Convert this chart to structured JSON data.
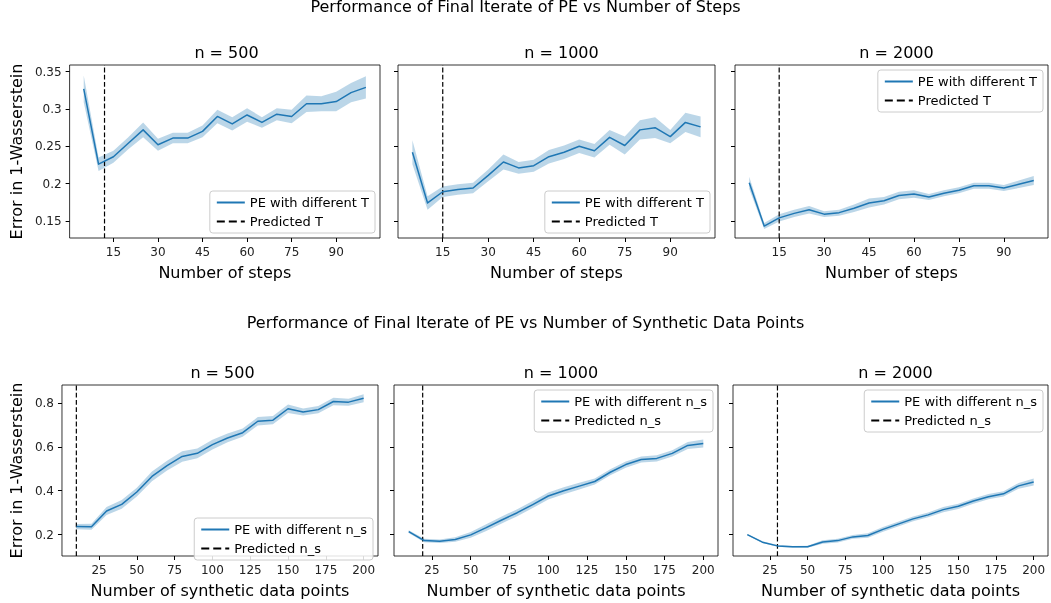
{
  "chart_data": [
    {
      "type": "line",
      "title": "n = 500",
      "xlabel": "Number of steps",
      "ylabel": "Error in 1-Wasserstein",
      "x": [
        5,
        10,
        15,
        20,
        25,
        30,
        35,
        40,
        45,
        50,
        55,
        60,
        65,
        70,
        75,
        80,
        85,
        90,
        95,
        100
      ],
      "xlim": [
        0.25,
        104.75
      ],
      "xticks": [
        15,
        30,
        45,
        60,
        75,
        90
      ],
      "ylim": [
        0.127,
        0.359
      ],
      "yticks": [
        0.15,
        0.2,
        0.25,
        0.3,
        0.35
      ],
      "grid": false,
      "legend": "bottom right",
      "series": [
        {
          "name": "PE with different T",
          "color": "#1f77b4",
          "values": [
            0.327,
            0.226,
            0.236,
            0.254,
            0.272,
            0.252,
            0.261,
            0.261,
            0.27,
            0.29,
            0.28,
            0.292,
            0.282,
            0.293,
            0.29,
            0.307,
            0.307,
            0.31,
            0.322,
            0.329
          ],
          "lower": [
            0.309,
            0.217,
            0.228,
            0.246,
            0.262,
            0.244,
            0.254,
            0.254,
            0.262,
            0.281,
            0.271,
            0.283,
            0.275,
            0.285,
            0.281,
            0.296,
            0.297,
            0.297,
            0.309,
            0.314
          ],
          "upper": [
            0.345,
            0.235,
            0.244,
            0.262,
            0.282,
            0.26,
            0.268,
            0.268,
            0.278,
            0.299,
            0.289,
            0.301,
            0.289,
            0.301,
            0.299,
            0.318,
            0.317,
            0.323,
            0.335,
            0.344
          ]
        }
      ],
      "ref_lines": [
        {
          "axis": "x",
          "value": 12,
          "label": "Predicted T",
          "color": "#000000",
          "line_style": "dashed"
        }
      ]
    },
    {
      "type": "line",
      "title": "n = 1000",
      "xlabel": "Number of steps",
      "x": [
        5,
        10,
        15,
        20,
        25,
        30,
        35,
        40,
        45,
        50,
        55,
        60,
        65,
        70,
        75,
        80,
        85,
        90,
        95,
        100
      ],
      "xlim": [
        0.25,
        104.75
      ],
      "xticks": [
        15,
        30,
        45,
        60,
        75,
        90
      ],
      "ylim": [
        0.127,
        0.359
      ],
      "yticks": [
        0.15,
        0.2,
        0.25,
        0.3,
        0.35
      ],
      "tick_labels": "x",
      "grid": false,
      "legend": "bottom right",
      "series": [
        {
          "name": "PE with different T",
          "color": "#1f77b4",
          "values": [
            0.242,
            0.174,
            0.189,
            0.192,
            0.194,
            0.211,
            0.229,
            0.221,
            0.224,
            0.236,
            0.242,
            0.25,
            0.244,
            0.262,
            0.251,
            0.272,
            0.275,
            0.263,
            0.282,
            0.276
          ],
          "lower": [
            0.226,
            0.165,
            0.182,
            0.185,
            0.187,
            0.203,
            0.219,
            0.213,
            0.216,
            0.227,
            0.233,
            0.241,
            0.235,
            0.252,
            0.239,
            0.259,
            0.261,
            0.254,
            0.269,
            0.262
          ],
          "upper": [
            0.258,
            0.183,
            0.196,
            0.199,
            0.201,
            0.219,
            0.239,
            0.229,
            0.232,
            0.245,
            0.251,
            0.259,
            0.253,
            0.272,
            0.263,
            0.285,
            0.289,
            0.272,
            0.295,
            0.29
          ]
        }
      ],
      "ref_lines": [
        {
          "axis": "x",
          "value": 15,
          "label": "Predicted T",
          "color": "#000000",
          "line_style": "dashed"
        }
      ],
      "annotations": [
        "Performance of Final Iterate of PE vs Number of Steps"
      ]
    },
    {
      "type": "line",
      "title": "n = 2000",
      "xlabel": "Number of steps",
      "x": [
        5,
        10,
        15,
        20,
        25,
        30,
        35,
        40,
        45,
        50,
        55,
        60,
        65,
        70,
        75,
        80,
        85,
        90,
        95,
        100
      ],
      "xlim": [
        0.25,
        104.75
      ],
      "xticks": [
        15,
        30,
        45,
        60,
        75,
        90
      ],
      "ylim": [
        0.127,
        0.359
      ],
      "yticks": [
        0.15,
        0.2,
        0.25,
        0.3,
        0.35
      ],
      "tick_labels": "x",
      "grid": false,
      "legend": "top right",
      "series": [
        {
          "name": "PE with different T",
          "color": "#1f77b4",
          "values": [
            0.201,
            0.143,
            0.154,
            0.16,
            0.165,
            0.159,
            0.161,
            0.167,
            0.174,
            0.177,
            0.184,
            0.186,
            0.182,
            0.187,
            0.191,
            0.197,
            0.197,
            0.194,
            0.199,
            0.204
          ],
          "lower": [
            0.193,
            0.139,
            0.149,
            0.155,
            0.16,
            0.155,
            0.157,
            0.162,
            0.168,
            0.172,
            0.179,
            0.181,
            0.178,
            0.183,
            0.187,
            0.193,
            0.193,
            0.19,
            0.194,
            0.198
          ],
          "upper": [
            0.209,
            0.147,
            0.159,
            0.165,
            0.17,
            0.163,
            0.165,
            0.172,
            0.18,
            0.182,
            0.189,
            0.191,
            0.186,
            0.191,
            0.195,
            0.201,
            0.201,
            0.198,
            0.204,
            0.21
          ]
        }
      ],
      "ref_lines": [
        {
          "axis": "x",
          "value": 15,
          "label": "Predicted T",
          "color": "#000000",
          "line_style": "dashed"
        }
      ]
    },
    {
      "type": "line",
      "title": "n = 500",
      "xlabel": "Number of synthetic data points",
      "ylabel": "Error in 1-Wasserstein",
      "x": [
        10,
        20,
        30,
        40,
        50,
        60,
        70,
        80,
        90,
        100,
        110,
        120,
        130,
        140,
        150,
        160,
        170,
        180,
        190,
        200
      ],
      "xlim": [
        0.5,
        209.5
      ],
      "xticks": [
        25,
        50,
        75,
        100,
        125,
        150,
        175,
        200
      ],
      "ylim": [
        0.103,
        0.881
      ],
      "yticks": [
        0.2,
        0.4,
        0.6,
        0.8
      ],
      "grid": false,
      "legend": "bottom right",
      "series": [
        {
          "name": "PE with different n_s",
          "color": "#1f77b4",
          "values": [
            0.237,
            0.236,
            0.308,
            0.338,
            0.394,
            0.465,
            0.514,
            0.556,
            0.57,
            0.61,
            0.64,
            0.664,
            0.716,
            0.721,
            0.773,
            0.758,
            0.769,
            0.806,
            0.803,
            0.821
          ],
          "lower": [
            0.225,
            0.222,
            0.29,
            0.318,
            0.374,
            0.443,
            0.492,
            0.532,
            0.548,
            0.588,
            0.62,
            0.645,
            0.697,
            0.702,
            0.754,
            0.742,
            0.752,
            0.789,
            0.787,
            0.803
          ],
          "upper": [
            0.249,
            0.25,
            0.326,
            0.358,
            0.414,
            0.487,
            0.536,
            0.58,
            0.592,
            0.632,
            0.66,
            0.683,
            0.735,
            0.74,
            0.792,
            0.774,
            0.786,
            0.823,
            0.819,
            0.839
          ]
        }
      ],
      "ref_lines": [
        {
          "axis": "x",
          "value": 10,
          "label": "Predicted n_s",
          "color": "#000000",
          "line_style": "dashed"
        }
      ]
    },
    {
      "type": "line",
      "title": "n = 1000",
      "xlabel": "Number of synthetic data points",
      "x": [
        10,
        20,
        30,
        40,
        50,
        60,
        70,
        80,
        90,
        100,
        110,
        120,
        130,
        140,
        150,
        160,
        170,
        180,
        190,
        200
      ],
      "xlim": [
        0.5,
        209.5
      ],
      "xticks": [
        25,
        50,
        75,
        100,
        125,
        150,
        175,
        200
      ],
      "ylim": [
        0.103,
        0.881
      ],
      "yticks": [
        0.2,
        0.4,
        0.6,
        0.8
      ],
      "tick_labels": "x",
      "grid": false,
      "legend": "top right",
      "series": [
        {
          "name": "PE with different n_s",
          "color": "#1f77b4",
          "values": [
            0.214,
            0.173,
            0.17,
            0.178,
            0.199,
            0.232,
            0.267,
            0.3,
            0.337,
            0.376,
            0.4,
            0.421,
            0.442,
            0.484,
            0.519,
            0.542,
            0.547,
            0.57,
            0.606,
            0.615
          ],
          "lower": [
            0.208,
            0.165,
            0.162,
            0.168,
            0.186,
            0.217,
            0.251,
            0.284,
            0.321,
            0.36,
            0.384,
            0.406,
            0.428,
            0.47,
            0.505,
            0.528,
            0.533,
            0.556,
            0.59,
            0.597
          ],
          "upper": [
            0.22,
            0.181,
            0.178,
            0.188,
            0.212,
            0.247,
            0.283,
            0.316,
            0.353,
            0.392,
            0.416,
            0.436,
            0.456,
            0.498,
            0.533,
            0.556,
            0.561,
            0.584,
            0.622,
            0.633
          ]
        }
      ],
      "ref_lines": [
        {
          "axis": "x",
          "value": 19,
          "label": "Predicted n_s",
          "color": "#000000",
          "line_style": "dashed"
        }
      ],
      "annotations": [
        "Performance of Final Iterate of PE vs Number of Synthetic Data Points"
      ]
    },
    {
      "type": "line",
      "title": "n = 2000",
      "xlabel": "Number of synthetic data points",
      "x": [
        10,
        20,
        30,
        40,
        50,
        60,
        70,
        80,
        90,
        100,
        110,
        120,
        130,
        140,
        150,
        160,
        170,
        180,
        190,
        200
      ],
      "xlim": [
        0.5,
        209.5
      ],
      "xticks": [
        25,
        50,
        75,
        100,
        125,
        150,
        175,
        200
      ],
      "ylim": [
        0.103,
        0.881
      ],
      "yticks": [
        0.2,
        0.4,
        0.6,
        0.8
      ],
      "tick_labels": "x",
      "grid": false,
      "legend": "top right",
      "series": [
        {
          "name": "PE with different n_s",
          "color": "#1f77b4",
          "values": [
            0.2,
            0.166,
            0.149,
            0.145,
            0.145,
            0.167,
            0.173,
            0.19,
            0.196,
            0.224,
            0.248,
            0.272,
            0.29,
            0.314,
            0.329,
            0.353,
            0.373,
            0.386,
            0.422,
            0.44
          ],
          "lower": [
            0.197,
            0.162,
            0.145,
            0.141,
            0.14,
            0.159,
            0.164,
            0.181,
            0.186,
            0.213,
            0.237,
            0.261,
            0.279,
            0.302,
            0.317,
            0.341,
            0.361,
            0.374,
            0.409,
            0.424
          ],
          "upper": [
            0.203,
            0.17,
            0.153,
            0.149,
            0.15,
            0.175,
            0.182,
            0.199,
            0.206,
            0.235,
            0.259,
            0.283,
            0.301,
            0.326,
            0.341,
            0.365,
            0.385,
            0.398,
            0.435,
            0.456
          ]
        }
      ],
      "ref_lines": [
        {
          "axis": "x",
          "value": 30,
          "label": "Predicted n_s",
          "color": "#000000",
          "line_style": "dashed"
        }
      ]
    }
  ]
}
